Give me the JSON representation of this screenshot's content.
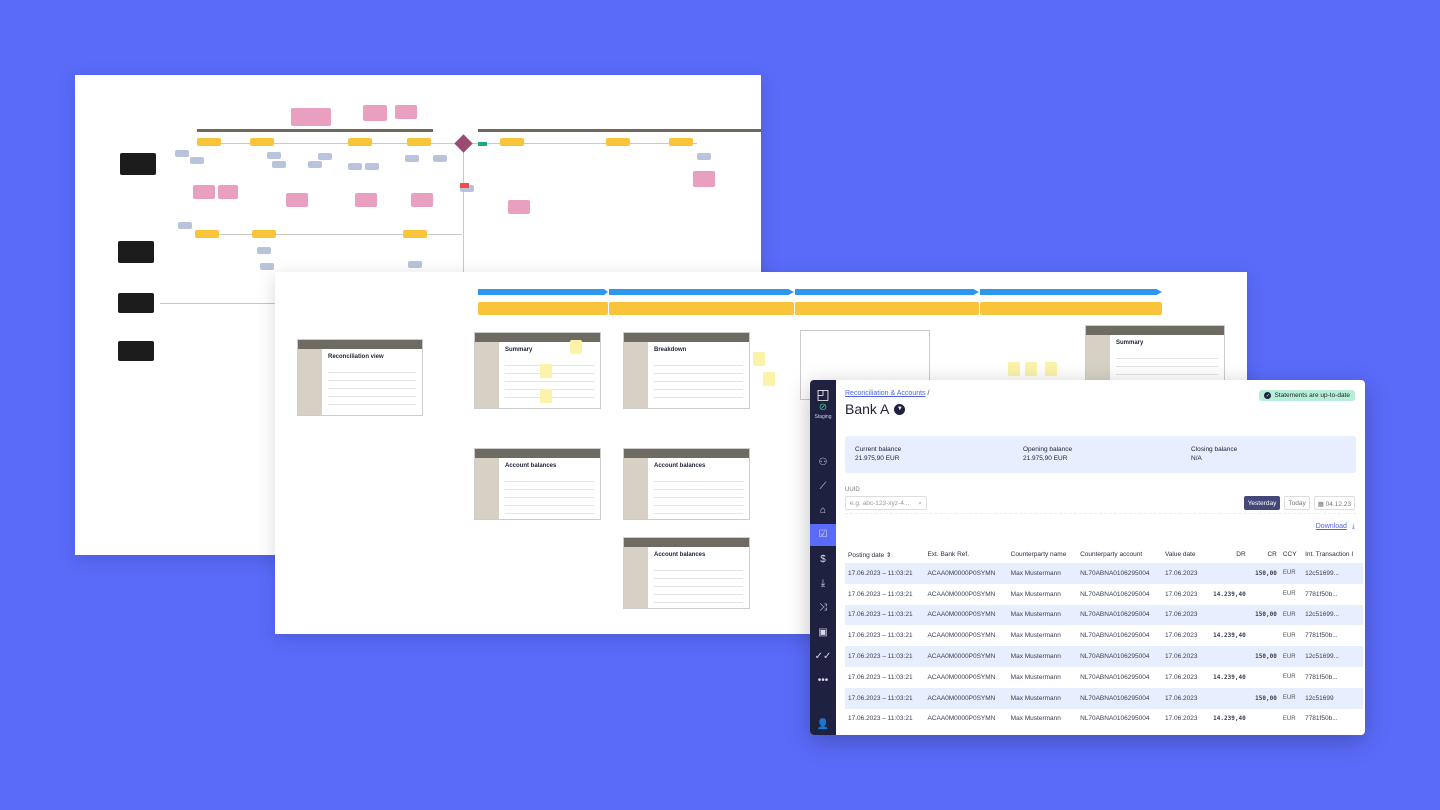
{
  "background_color": "#5a6bfa",
  "diagrams": {
    "mini_screens": [
      "Reconciliation view",
      "Summary",
      "Breakdown",
      "Account balances",
      "Account balances",
      "Account balances",
      "Summary"
    ]
  },
  "app": {
    "sidebar": {
      "logo_icon": "square-logo-icon",
      "environment": "Staging",
      "items": [
        {
          "icon": "users-cog-icon"
        },
        {
          "icon": "trend-line-icon"
        },
        {
          "icon": "bank-icon"
        },
        {
          "icon": "clipboard-check-icon",
          "active": true
        },
        {
          "icon": "dollar-circle-icon"
        },
        {
          "icon": "download-tray-icon"
        },
        {
          "icon": "shuffle-icon"
        },
        {
          "icon": "cash-icon"
        },
        {
          "icon": "double-check-icon"
        },
        {
          "icon": "more-icon"
        }
      ],
      "user_icon": "user-notification-icon"
    },
    "breadcrumb": {
      "parent": "Reconciliation & Accounts",
      "separator": "/"
    },
    "title": "Bank A",
    "status_badge": "Statements are up-to-date",
    "balances": [
      {
        "label": "Current balance",
        "value": "21.975,90 EUR"
      },
      {
        "label": "Opening balance",
        "value": "21.975,90 EUR"
      },
      {
        "label": "Closing balance",
        "value": "N/A"
      }
    ],
    "filters": {
      "uuid_label": "UUID",
      "uuid_placeholder": "e.g. abc-123-xyz-4...",
      "yesterday": "Yesterday",
      "today": "Today",
      "date": "04.12.23"
    },
    "download": "Download",
    "table": {
      "columns": [
        "Posting date",
        "Ext. Bank Ref.",
        "Counterparty name",
        "Counterparty account",
        "Value date",
        "DR",
        "CR",
        "CCY",
        "Int. Transaction I"
      ],
      "rows": [
        [
          "17.06.2023 – 11:03:21",
          "ACAA0M0000P0SYMN",
          "Max Mustermann",
          "NL70ABNA0106295004",
          "17.06.2023",
          "",
          "150,00",
          "EUR",
          "12c51699..."
        ],
        [
          "17.06.2023 – 11:03:21",
          "ACAA0M0000P0SYMN",
          "Max Mustermann",
          "NL70ABNA0106295004",
          "17.06.2023",
          "14.239,40",
          "",
          "EUR",
          "7781f50b..."
        ],
        [
          "17.06.2023 – 11:03:21",
          "ACAA0M0000P0SYMN",
          "Max Mustermann",
          "NL70ABNA0106295004",
          "17.06.2023",
          "",
          "150,00",
          "EUR",
          "12c51699..."
        ],
        [
          "17.06.2023 – 11:03:21",
          "ACAA0M0000P0SYMN",
          "Max Mustermann",
          "NL70ABNA0106295004",
          "17.06.2023",
          "14.239,40",
          "",
          "EUR",
          "7781f50b..."
        ],
        [
          "17.06.2023 – 11:03:21",
          "ACAA0M0000P0SYMN",
          "Max Mustermann",
          "NL70ABNA0106295004",
          "17.06.2023",
          "",
          "150,00",
          "EUR",
          "12c51699..."
        ],
        [
          "17.06.2023 – 11:03:21",
          "ACAA0M0000P0SYMN",
          "Max Mustermann",
          "NL70ABNA0106295004",
          "17.06.2023",
          "14.239,40",
          "",
          "EUR",
          "7781f50b..."
        ],
        [
          "17.06.2023 – 11:03:21",
          "ACAA0M0000P0SYMN",
          "Max Mustermann",
          "NL70ABNA0106295004",
          "17.06.2023",
          "",
          "150,00",
          "EUR",
          "12c51699"
        ],
        [
          "17.06.2023 – 11:03:21",
          "ACAA0M0000P0SYMN",
          "Max Mustermann",
          "NL70ABNA0106295004",
          "17.06.2023",
          "14.239,40",
          "",
          "EUR",
          "7781f50b..."
        ]
      ]
    }
  }
}
